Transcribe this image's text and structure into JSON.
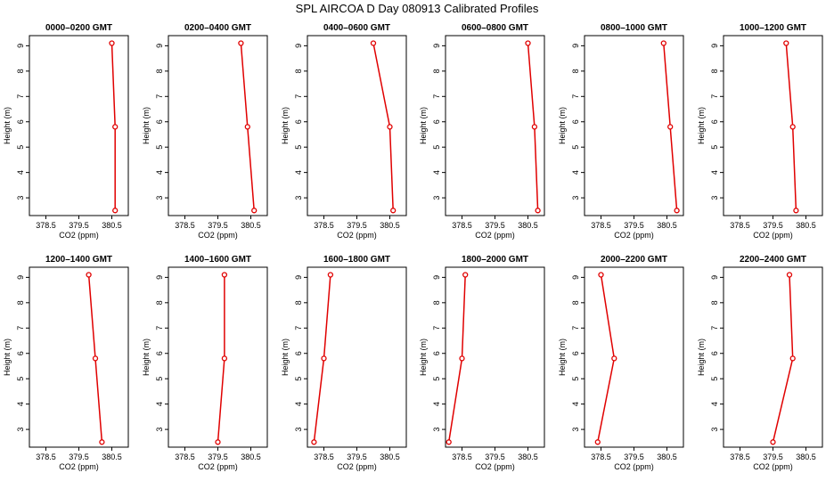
{
  "figure_title": "SPL AIRCOA D  Day 080913  Calibrated Profiles",
  "colors": {
    "series": "#e00000",
    "axes": "#000000"
  },
  "chart_data": [
    {
      "type": "line",
      "title": "0000–0200 GMT",
      "xlabel": "CO2 (ppm)",
      "ylabel": "Height (m)",
      "xlim": [
        378.0,
        381.0
      ],
      "ylim": [
        2.3,
        9.4
      ],
      "xticks": [
        "378.5",
        "379.5",
        "380.5"
      ],
      "yticks": [
        "3",
        "4",
        "5",
        "6",
        "7",
        "8",
        "9"
      ],
      "grid": false,
      "x": [
        380.5,
        380.6,
        380.6
      ],
      "y": [
        9.1,
        5.8,
        2.5
      ]
    },
    {
      "type": "line",
      "title": "0200–0400 GMT",
      "xlabel": "CO2 (ppm)",
      "ylabel": "Height (m)",
      "xlim": [
        378.0,
        381.0
      ],
      "ylim": [
        2.3,
        9.4
      ],
      "xticks": [
        "378.5",
        "379.5",
        "380.5"
      ],
      "yticks": [
        "3",
        "4",
        "5",
        "6",
        "7",
        "8",
        "9"
      ],
      "grid": false,
      "x": [
        380.2,
        380.4,
        380.6
      ],
      "y": [
        9.1,
        5.8,
        2.5
      ]
    },
    {
      "type": "line",
      "title": "0400–0600 GMT",
      "xlabel": "CO2 (ppm)",
      "ylabel": "Height (m)",
      "xlim": [
        378.0,
        381.0
      ],
      "ylim": [
        2.3,
        9.4
      ],
      "xticks": [
        "378.5",
        "379.5",
        "380.5"
      ],
      "yticks": [
        "3",
        "4",
        "5",
        "6",
        "7",
        "8",
        "9"
      ],
      "grid": false,
      "x": [
        380.0,
        380.5,
        380.6
      ],
      "y": [
        9.1,
        5.8,
        2.5
      ]
    },
    {
      "type": "line",
      "title": "0600–0800 GMT",
      "xlabel": "CO2 (ppm)",
      "ylabel": "Height (m)",
      "xlim": [
        378.0,
        381.0
      ],
      "ylim": [
        2.3,
        9.4
      ],
      "xticks": [
        "378.5",
        "379.5",
        "380.5"
      ],
      "yticks": [
        "3",
        "4",
        "5",
        "6",
        "7",
        "8",
        "9"
      ],
      "grid": false,
      "x": [
        380.5,
        380.7,
        380.8
      ],
      "y": [
        9.1,
        5.8,
        2.5
      ]
    },
    {
      "type": "line",
      "title": "0800–1000 GMT",
      "xlabel": "CO2 (ppm)",
      "ylabel": "Height (m)",
      "xlim": [
        378.0,
        381.0
      ],
      "ylim": [
        2.3,
        9.4
      ],
      "xticks": [
        "378.5",
        "379.5",
        "380.5"
      ],
      "yticks": [
        "3",
        "4",
        "5",
        "6",
        "7",
        "8",
        "9"
      ],
      "grid": false,
      "x": [
        380.4,
        380.6,
        380.8
      ],
      "y": [
        9.1,
        5.8,
        2.5
      ]
    },
    {
      "type": "line",
      "title": "1000–1200 GMT",
      "xlabel": "CO2 (ppm)",
      "ylabel": "Height (m)",
      "xlim": [
        378.0,
        381.0
      ],
      "ylim": [
        2.3,
        9.4
      ],
      "xticks": [
        "378.5",
        "379.5",
        "380.5"
      ],
      "yticks": [
        "3",
        "4",
        "5",
        "6",
        "7",
        "8",
        "9"
      ],
      "grid": false,
      "x": [
        379.9,
        380.1,
        380.2
      ],
      "y": [
        9.1,
        5.8,
        2.5
      ]
    },
    {
      "type": "line",
      "title": "1200–1400 GMT",
      "xlabel": "CO2 (ppm)",
      "ylabel": "Height (m)",
      "xlim": [
        378.0,
        381.0
      ],
      "ylim": [
        2.3,
        9.4
      ],
      "xticks": [
        "378.5",
        "379.5",
        "380.5"
      ],
      "yticks": [
        "3",
        "4",
        "5",
        "6",
        "7",
        "8",
        "9"
      ],
      "grid": false,
      "x": [
        379.8,
        380.0,
        380.2
      ],
      "y": [
        9.1,
        5.8,
        2.5
      ]
    },
    {
      "type": "line",
      "title": "1400–1600 GMT",
      "xlabel": "CO2 (ppm)",
      "ylabel": "Height (m)",
      "xlim": [
        378.0,
        381.0
      ],
      "ylim": [
        2.3,
        9.4
      ],
      "xticks": [
        "378.5",
        "379.5",
        "380.5"
      ],
      "yticks": [
        "3",
        "4",
        "5",
        "6",
        "7",
        "8",
        "9"
      ],
      "grid": false,
      "x": [
        379.7,
        379.7,
        379.5
      ],
      "y": [
        9.1,
        5.8,
        2.5
      ]
    },
    {
      "type": "line",
      "title": "1600–1800 GMT",
      "xlabel": "CO2 (ppm)",
      "ylabel": "Height (m)",
      "xlim": [
        378.0,
        381.0
      ],
      "ylim": [
        2.3,
        9.4
      ],
      "xticks": [
        "378.5",
        "379.5",
        "380.5"
      ],
      "yticks": [
        "3",
        "4",
        "5",
        "6",
        "7",
        "8",
        "9"
      ],
      "grid": false,
      "x": [
        378.7,
        378.5,
        378.2
      ],
      "y": [
        9.1,
        5.8,
        2.5
      ]
    },
    {
      "type": "line",
      "title": "1800–2000 GMT",
      "xlabel": "CO2 (ppm)",
      "ylabel": "Height (m)",
      "xlim": [
        378.0,
        381.0
      ],
      "ylim": [
        2.3,
        9.4
      ],
      "xticks": [
        "378.5",
        "379.5",
        "380.5"
      ],
      "yticks": [
        "3",
        "4",
        "5",
        "6",
        "7",
        "8",
        "9"
      ],
      "grid": false,
      "x": [
        378.6,
        378.5,
        378.1
      ],
      "y": [
        9.1,
        5.8,
        2.5
      ]
    },
    {
      "type": "line",
      "title": "2000–2200 GMT",
      "xlabel": "CO2 (ppm)",
      "ylabel": "Height (m)",
      "xlim": [
        378.0,
        381.0
      ],
      "ylim": [
        2.3,
        9.4
      ],
      "xticks": [
        "378.5",
        "379.5",
        "380.5"
      ],
      "yticks": [
        "3",
        "4",
        "5",
        "6",
        "7",
        "8",
        "9"
      ],
      "grid": false,
      "x": [
        378.5,
        378.9,
        378.4
      ],
      "y": [
        9.1,
        5.8,
        2.5
      ]
    },
    {
      "type": "line",
      "title": "2200–2400 GMT",
      "xlabel": "CO2 (ppm)",
      "ylabel": "Height (m)",
      "xlim": [
        378.0,
        381.0
      ],
      "ylim": [
        2.3,
        9.4
      ],
      "xticks": [
        "378.5",
        "379.5",
        "380.5"
      ],
      "yticks": [
        "3",
        "4",
        "5",
        "6",
        "7",
        "8",
        "9"
      ],
      "grid": false,
      "x": [
        380.0,
        380.1,
        379.5
      ],
      "y": [
        9.1,
        5.8,
        2.5
      ]
    }
  ]
}
